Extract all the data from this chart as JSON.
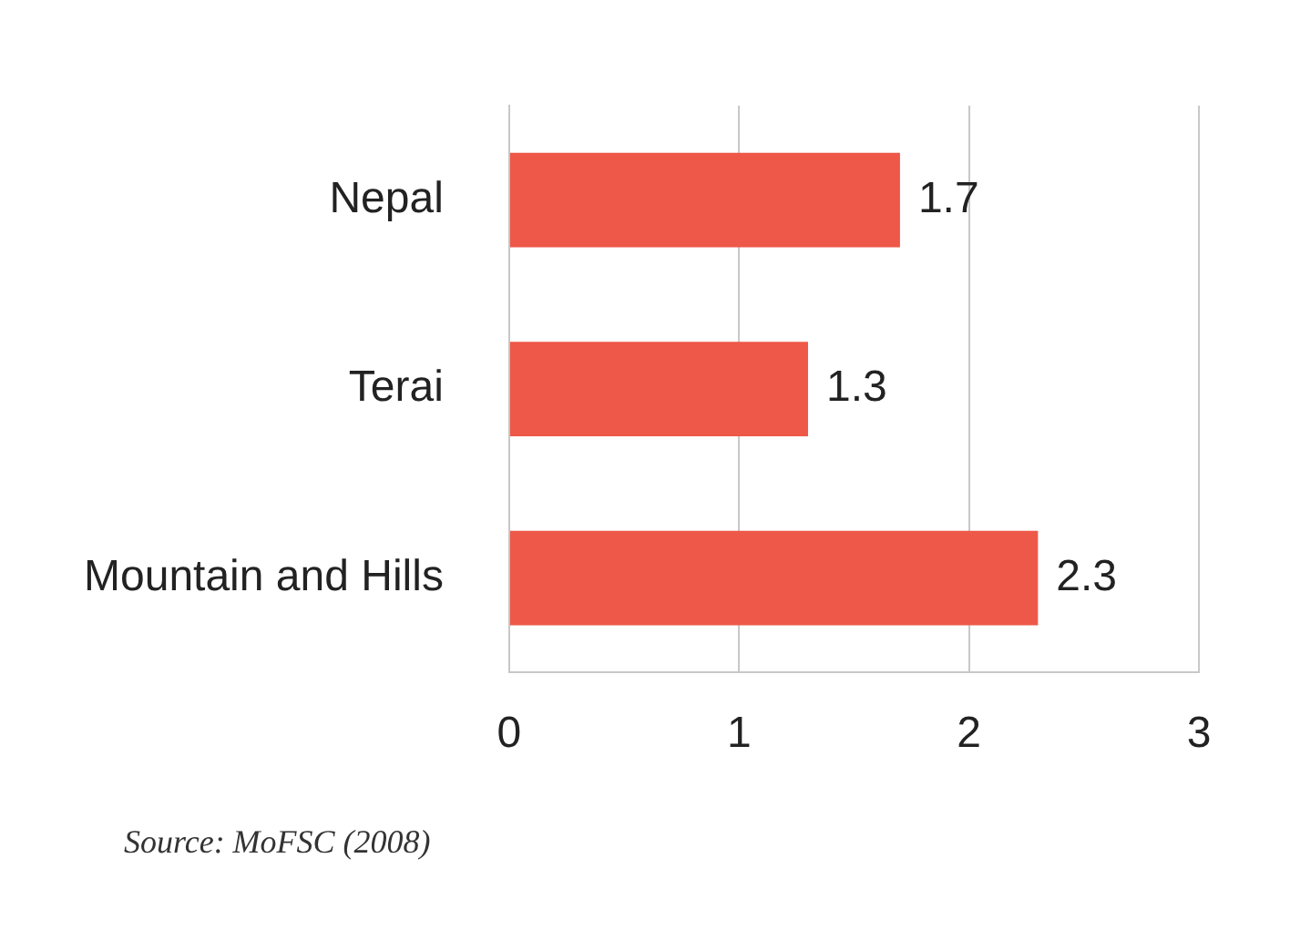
{
  "chart_data": {
    "type": "bar",
    "orientation": "horizontal",
    "categories": [
      "Nepal",
      "Terai",
      "Mountain and Hills"
    ],
    "values": [
      1.7,
      1.3,
      2.3
    ],
    "color": "#ee5848",
    "xlim": [
      0,
      3
    ],
    "xticks": [
      0,
      1,
      2,
      3
    ],
    "grid": "x",
    "data_labels": true,
    "legend": false,
    "annotations": [
      "Source: MoFSC (2008)"
    ]
  }
}
